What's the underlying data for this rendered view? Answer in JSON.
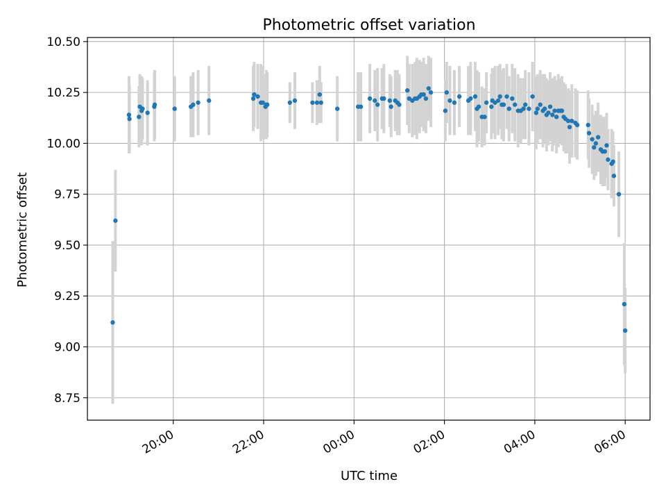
{
  "chart_data": {
    "type": "scatter",
    "title": "Photometric offset variation",
    "xlabel": "UTC time",
    "ylabel": "Photometric offset",
    "x_unit": "hours relative to 00:00 UTC",
    "xlim": [
      -5.9,
      6.55
    ],
    "ylim": [
      8.64,
      10.52
    ],
    "xticks": [
      -4,
      -2,
      0,
      2,
      4,
      6
    ],
    "xtick_labels": [
      "20:00",
      "22:00",
      "00:00",
      "02:00",
      "04:00",
      "06:00"
    ],
    "yticks": [
      8.75,
      9.0,
      9.25,
      9.5,
      9.75,
      10.0,
      10.25,
      10.5
    ],
    "ytick_labels": [
      "8.75",
      "9.00",
      "9.25",
      "9.50",
      "9.75",
      "10.00",
      "10.25",
      "10.50"
    ],
    "grid": true,
    "point_color": "#1f77b4",
    "errorbar_color": "#d3d3d3",
    "points": [
      [
        -5.34,
        9.12,
        0.4
      ],
      [
        -5.28,
        9.62,
        0.25
      ],
      [
        -4.98,
        10.14,
        0.19
      ],
      [
        -4.97,
        10.12,
        0.17
      ],
      [
        -4.76,
        10.13,
        0.15
      ],
      [
        -4.74,
        10.18,
        0.16
      ],
      [
        -4.7,
        10.16,
        0.17
      ],
      [
        -4.68,
        10.17,
        0.15
      ],
      [
        -4.57,
        10.15,
        0.16
      ],
      [
        -4.42,
        10.18,
        0.17
      ],
      [
        -4.41,
        10.19,
        0.17
      ],
      [
        -3.97,
        10.17,
        0.16
      ],
      [
        -3.61,
        10.18,
        0.15
      ],
      [
        -3.56,
        10.19,
        0.16
      ],
      [
        -3.45,
        10.2,
        0.16
      ],
      [
        -3.21,
        10.21,
        0.17
      ],
      [
        -2.23,
        10.22,
        0.16
      ],
      [
        -2.21,
        10.24,
        0.16
      ],
      [
        -2.13,
        10.23,
        0.16
      ],
      [
        -2.06,
        10.2,
        0.19
      ],
      [
        -2.02,
        10.2,
        0.18
      ],
      [
        -1.96,
        10.18,
        0.16
      ],
      [
        -1.94,
        10.19,
        0.17
      ],
      [
        -1.92,
        10.19,
        0.16
      ],
      [
        -1.42,
        10.2,
        0.1
      ],
      [
        -1.31,
        10.21,
        0.14
      ],
      [
        -0.92,
        10.2,
        0.1
      ],
      [
        -0.82,
        10.2,
        0.11
      ],
      [
        -0.76,
        10.24,
        0.14
      ],
      [
        -0.73,
        10.2,
        0.1
      ],
      [
        -0.37,
        10.17,
        0.16
      ],
      [
        0.09,
        10.18,
        0.17
      ],
      [
        0.15,
        10.18,
        0.17
      ],
      [
        0.35,
        10.22,
        0.17
      ],
      [
        0.46,
        10.21,
        0.15
      ],
      [
        0.52,
        10.19,
        0.18
      ],
      [
        0.62,
        10.22,
        0.15
      ],
      [
        0.66,
        10.22,
        0.17
      ],
      [
        0.79,
        10.21,
        0.13
      ],
      [
        0.82,
        10.18,
        0.15
      ],
      [
        0.91,
        10.21,
        0.15
      ],
      [
        0.96,
        10.2,
        0.16
      ],
      [
        1.0,
        10.19,
        0.15
      ],
      [
        1.18,
        10.26,
        0.17
      ],
      [
        1.22,
        10.22,
        0.17
      ],
      [
        1.29,
        10.21,
        0.18
      ],
      [
        1.35,
        10.22,
        0.18
      ],
      [
        1.39,
        10.22,
        0.2
      ],
      [
        1.45,
        10.23,
        0.18
      ],
      [
        1.49,
        10.24,
        0.16
      ],
      [
        1.54,
        10.24,
        0.18
      ],
      [
        1.59,
        10.22,
        0.17
      ],
      [
        1.65,
        10.27,
        0.16
      ],
      [
        1.7,
        10.25,
        0.17
      ],
      [
        2.02,
        10.16,
        0.15
      ],
      [
        2.05,
        10.25,
        0.15
      ],
      [
        2.12,
        10.21,
        0.17
      ],
      [
        2.22,
        10.2,
        0.16
      ],
      [
        2.33,
        10.23,
        0.15
      ],
      [
        2.53,
        10.21,
        0.17
      ],
      [
        2.58,
        10.22,
        0.18
      ],
      [
        2.68,
        10.23,
        0.17
      ],
      [
        2.72,
        10.17,
        0.19
      ],
      [
        2.76,
        10.18,
        0.17
      ],
      [
        2.83,
        10.13,
        0.15
      ],
      [
        2.89,
        10.13,
        0.14
      ],
      [
        2.93,
        10.2,
        0.15
      ],
      [
        3.04,
        10.18,
        0.16
      ],
      [
        3.06,
        10.21,
        0.16
      ],
      [
        3.12,
        10.2,
        0.18
      ],
      [
        3.19,
        10.21,
        0.17
      ],
      [
        3.23,
        10.23,
        0.16
      ],
      [
        3.27,
        10.19,
        0.17
      ],
      [
        3.31,
        10.19,
        0.18
      ],
      [
        3.38,
        10.23,
        0.16
      ],
      [
        3.43,
        10.17,
        0.16
      ],
      [
        3.5,
        10.22,
        0.17
      ],
      [
        3.56,
        10.19,
        0.18
      ],
      [
        3.63,
        10.16,
        0.18
      ],
      [
        3.69,
        10.16,
        0.16
      ],
      [
        3.75,
        10.17,
        0.15
      ],
      [
        3.79,
        10.19,
        0.17
      ],
      [
        3.87,
        10.17,
        0.18
      ],
      [
        3.95,
        10.23,
        0.17
      ],
      [
        4.03,
        10.15,
        0.18
      ],
      [
        4.06,
        10.17,
        0.17
      ],
      [
        4.12,
        10.19,
        0.17
      ],
      [
        4.18,
        10.16,
        0.18
      ],
      [
        4.22,
        10.17,
        0.17
      ],
      [
        4.26,
        10.14,
        0.18
      ],
      [
        4.3,
        10.15,
        0.16
      ],
      [
        4.34,
        10.18,
        0.17
      ],
      [
        4.39,
        10.14,
        0.18
      ],
      [
        4.44,
        10.16,
        0.17
      ],
      [
        4.48,
        10.13,
        0.18
      ],
      [
        4.52,
        10.16,
        0.18
      ],
      [
        4.57,
        10.16,
        0.16
      ],
      [
        4.6,
        10.16,
        0.17
      ],
      [
        4.64,
        10.13,
        0.17
      ],
      [
        4.68,
        10.12,
        0.17
      ],
      [
        4.74,
        10.11,
        0.16
      ],
      [
        4.77,
        10.08,
        0.18
      ],
      [
        4.82,
        10.11,
        0.18
      ],
      [
        4.9,
        10.1,
        0.17
      ],
      [
        4.94,
        10.09,
        0.17
      ],
      [
        5.18,
        10.09,
        0.17
      ],
      [
        5.2,
        10.05,
        0.17
      ],
      [
        5.27,
        10.02,
        0.17
      ],
      [
        5.31,
        9.98,
        0.16
      ],
      [
        5.35,
        10.0,
        0.16
      ],
      [
        5.4,
        10.03,
        0.17
      ],
      [
        5.46,
        9.97,
        0.17
      ],
      [
        5.5,
        9.96,
        0.17
      ],
      [
        5.55,
        9.96,
        0.17
      ],
      [
        5.59,
        9.99,
        0.16
      ],
      [
        5.62,
        9.92,
        0.15
      ],
      [
        5.7,
        9.9,
        0.17
      ],
      [
        5.73,
        9.91,
        0.15
      ],
      [
        5.75,
        9.84,
        0.15
      ],
      [
        5.86,
        9.75,
        0.21
      ],
      [
        5.98,
        9.21,
        0.3
      ],
      [
        6.0,
        9.08,
        0.21
      ]
    ]
  }
}
